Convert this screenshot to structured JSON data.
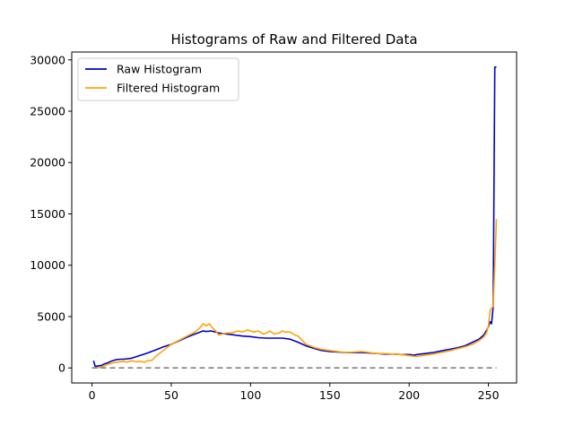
{
  "chart_data": {
    "type": "line",
    "title": "Histograms of Raw and Filtered Data",
    "xlabel": "",
    "ylabel": "",
    "xlim": [
      -12.75,
      267.75
    ],
    "ylim": [
      -1465,
      30765
    ],
    "xticks": [
      0,
      50,
      100,
      150,
      200,
      250
    ],
    "yticks": [
      0,
      5000,
      10000,
      15000,
      20000,
      25000,
      30000
    ],
    "grid": false,
    "legend_position": "top-left",
    "series": [
      {
        "name": "Raw Histogram",
        "color": "#0000cc",
        "x": [
          1,
          2,
          4,
          6,
          8,
          10,
          12,
          15,
          18,
          20,
          25,
          30,
          35,
          40,
          45,
          50,
          55,
          60,
          65,
          70,
          72,
          75,
          78,
          80,
          85,
          90,
          95,
          100,
          105,
          110,
          115,
          120,
          125,
          130,
          135,
          140,
          145,
          150,
          155,
          160,
          165,
          170,
          175,
          180,
          185,
          190,
          195,
          200,
          203,
          205,
          210,
          215,
          220,
          225,
          230,
          235,
          240,
          244,
          247,
          249,
          250,
          251,
          252,
          253,
          254,
          255
        ],
        "values": [
          700,
          150,
          200,
          250,
          400,
          500,
          650,
          800,
          850,
          850,
          950,
          1200,
          1450,
          1750,
          2050,
          2300,
          2650,
          3000,
          3300,
          3600,
          3550,
          3600,
          3500,
          3400,
          3300,
          3200,
          3100,
          3050,
          2950,
          2900,
          2900,
          2900,
          2800,
          2500,
          2150,
          1900,
          1700,
          1600,
          1550,
          1500,
          1500,
          1500,
          1450,
          1400,
          1350,
          1350,
          1300,
          1300,
          1250,
          1300,
          1400,
          1500,
          1650,
          1800,
          1950,
          2150,
          2500,
          2800,
          3200,
          3700,
          4000,
          4500,
          4300,
          6000,
          29300,
          29300
        ]
      },
      {
        "name": "Filtered Histogram",
        "color": "#ffa500",
        "x": [
          1,
          5,
          8,
          10,
          12,
          15,
          18,
          20,
          22,
          25,
          28,
          30,
          33,
          35,
          38,
          40,
          45,
          50,
          55,
          60,
          65,
          68,
          70,
          72,
          74,
          76,
          78,
          80,
          82,
          85,
          88,
          90,
          92,
          95,
          98,
          100,
          102,
          105,
          108,
          110,
          112,
          115,
          118,
          120,
          122,
          125,
          128,
          130,
          135,
          140,
          145,
          150,
          155,
          160,
          165,
          170,
          175,
          180,
          185,
          190,
          195,
          200,
          205,
          210,
          215,
          220,
          225,
          230,
          235,
          240,
          244,
          247,
          249,
          250,
          251,
          252,
          253,
          254,
          255
        ],
        "values": [
          0,
          50,
          200,
          350,
          450,
          550,
          600,
          650,
          550,
          700,
          600,
          650,
          550,
          700,
          750,
          1100,
          1700,
          2300,
          2700,
          3100,
          3500,
          3900,
          4300,
          4100,
          4300,
          3900,
          3600,
          3200,
          3300,
          3400,
          3400,
          3500,
          3600,
          3500,
          3700,
          3600,
          3500,
          3600,
          3300,
          3400,
          3600,
          3300,
          3400,
          3600,
          3500,
          3500,
          3200,
          3100,
          2300,
          2000,
          1800,
          1700,
          1600,
          1500,
          1550,
          1600,
          1500,
          1400,
          1400,
          1350,
          1300,
          1200,
          1100,
          1250,
          1350,
          1500,
          1650,
          1850,
          2050,
          2300,
          2650,
          3000,
          3500,
          4100,
          5600,
          5800,
          6000,
          10000,
          14500
        ]
      },
      {
        "name": "",
        "color": "#808080",
        "dashed": true,
        "x": [
          0,
          255
        ],
        "values": [
          0,
          0
        ]
      }
    ]
  }
}
